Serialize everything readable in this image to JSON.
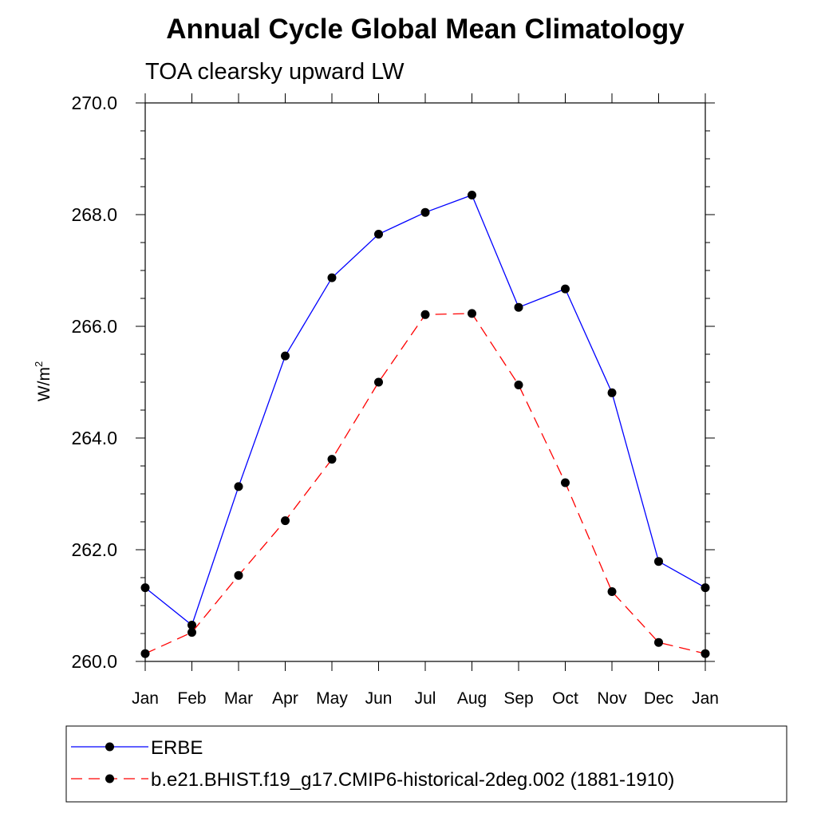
{
  "chart_data": {
    "type": "line",
    "title": "Annual Cycle Global Mean Climatology",
    "subtitle": "TOA clearsky upward LW",
    "xlabel": "",
    "ylabel": "W/m",
    "ylabel_superscript": "2",
    "categories": [
      "Jan",
      "Feb",
      "Mar",
      "Apr",
      "May",
      "Jun",
      "Jul",
      "Aug",
      "Sep",
      "Oct",
      "Nov",
      "Dec",
      "Jan"
    ],
    "ylim": [
      260.0,
      270.0
    ],
    "yticks": [
      "260.0",
      "262.0",
      "264.0",
      "266.0",
      "268.0",
      "270.0"
    ],
    "ytick_values": [
      260,
      262,
      264,
      266,
      268,
      270
    ],
    "minor_step": 0.5,
    "legend_position": "bottom",
    "series": [
      {
        "name": "ERBE",
        "color": "#0000ff",
        "style": "solid",
        "marker": "filled-circle",
        "values": [
          261.32,
          260.65,
          263.13,
          265.47,
          266.87,
          267.65,
          268.04,
          268.35,
          266.34,
          266.67,
          264.81,
          261.79,
          261.32
        ]
      },
      {
        "name": "b.e21.BHIST.f19_g17.CMIP6-historical-2deg.002 (1881-1910)",
        "color": "#ff0000",
        "style": "dashed",
        "marker": "filled-circle",
        "values": [
          260.14,
          260.52,
          261.54,
          262.52,
          263.62,
          265.0,
          266.21,
          266.23,
          264.95,
          263.2,
          261.25,
          260.34,
          260.14
        ]
      }
    ]
  }
}
